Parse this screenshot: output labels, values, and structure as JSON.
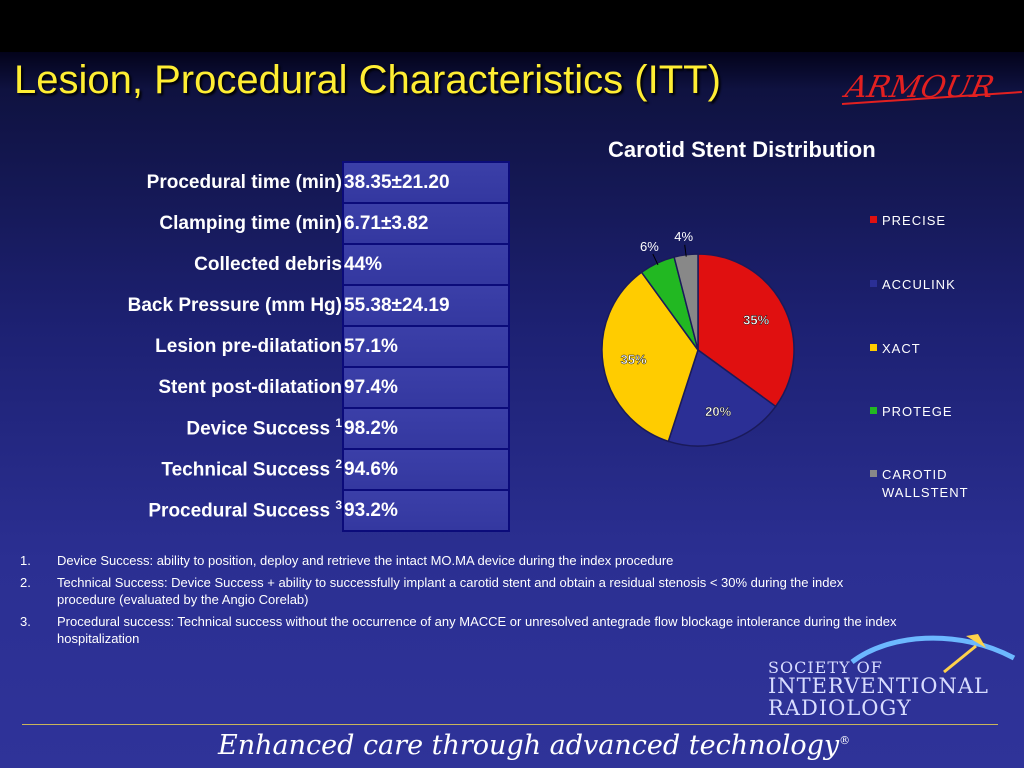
{
  "title": "Lesion, Procedural Characteristics (ITT)",
  "logo_text": "ARMOUR",
  "table": [
    {
      "label": "Procedural time (min)",
      "sup": "",
      "value": "38.35±21.20"
    },
    {
      "label": "Clamping time (min)",
      "sup": "",
      "value": "6.71±3.82"
    },
    {
      "label": "Collected debris",
      "sup": "",
      "value": "44%"
    },
    {
      "label": "Back Pressure (mm Hg)",
      "sup": "",
      "value": "55.38±24.19"
    },
    {
      "label": "Lesion pre-dilatation",
      "sup": "",
      "value": "57.1%"
    },
    {
      "label": "Stent post-dilatation",
      "sup": "",
      "value": "97.4%"
    },
    {
      "label": "Device Success",
      "sup": "1",
      "value": "98.2%"
    },
    {
      "label": "Technical Success",
      "sup": "2",
      "value": "94.6%"
    },
    {
      "label": "Procedural Success",
      "sup": "3",
      "value": "93.2%"
    }
  ],
  "chart_data": {
    "type": "pie",
    "title": "Carotid Stent Distribution",
    "categories": [
      "PRECISE",
      "ACCULINK",
      "XACT",
      "PROTEGE",
      "CAROTID WALLSTENT"
    ],
    "values": [
      35,
      20,
      35,
      6,
      4
    ],
    "labels": [
      "35%",
      "20%",
      "35%",
      "6%",
      "4%"
    ],
    "colors": [
      "#e01010",
      "#2b2f95",
      "#ffcc00",
      "#22b822",
      "#888888"
    ],
    "legend": "right"
  },
  "notes": [
    {
      "num": "1.",
      "text": "Device Success: ability to position, deploy and retrieve the intact MO.MA device during the index procedure"
    },
    {
      "num": "2.",
      "text": "Technical Success: Device Success + ability to successfully implant a carotid stent and obtain a residual stenosis < 30% during the index procedure (evaluated by the Angio Corelab)"
    },
    {
      "num": "3.",
      "text": "Procedural success: Technical success without the occurrence of any MACCE or unresolved antegrade flow blockage intolerance during the index hospitalization"
    }
  ],
  "society": {
    "line1": "SOCIETY OF",
    "line2": "INTERVENTIONAL",
    "line3": "RADIOLOGY"
  },
  "tagline": "Enhanced care through advanced technology",
  "tagline_mark": "®"
}
